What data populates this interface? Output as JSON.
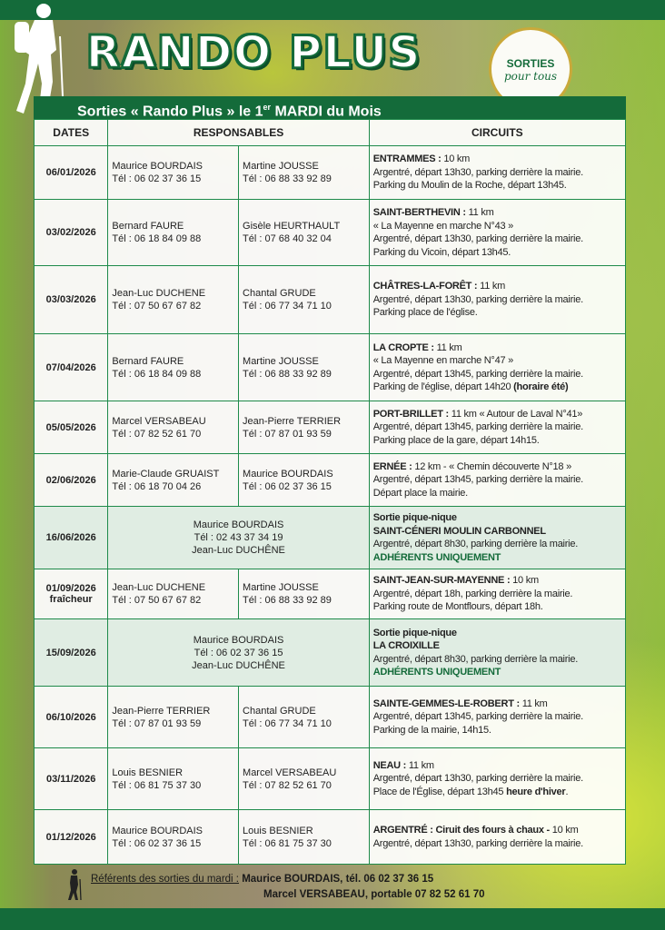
{
  "header": {
    "title": "RANDO PLUS",
    "badge_line1": "SORTIES",
    "badge_line2": "pour tous",
    "subtitle_pre": "Sorties « Rando Plus »  le 1",
    "subtitle_sup": "er",
    "subtitle_post": " MARDI du Mois"
  },
  "colors": {
    "brand_green": "#146b3a",
    "border_green": "#1e8a4a",
    "badge_gold": "#c9a93a"
  },
  "icons": {
    "hiker": "hiker-silhouette-icon"
  },
  "table": {
    "columns": [
      "DATES",
      "RESPONSABLES",
      "CIRCUITS"
    ],
    "rows": [
      {
        "date": [
          "06/01/2026"
        ],
        "resp": [
          [
            "Maurice BOURDAIS",
            "Tél : 06 02 37 36 15"
          ],
          [
            "Martine JOUSSE",
            "Tél : 06 88 33 92 89"
          ]
        ],
        "circuit": [
          [
            [
              "ENTRAMMES :",
              "b"
            ],
            [
              " 10 km",
              ""
            ]
          ],
          [
            [
              "Argentré, départ 13h30, parking derrière la mairie.",
              ""
            ]
          ],
          [
            [
              "Parking du Moulin de la Roche, départ 13h45.",
              ""
            ]
          ]
        ]
      },
      {
        "date": [
          "03/02/2026"
        ],
        "resp": [
          [
            "Bernard FAURE",
            "Tél : 06 18 84 09 88"
          ],
          [
            "Gisèle HEURTHAULT",
            "Tél : 07 68 40 32 04"
          ]
        ],
        "circuit": [
          [
            [
              "SAINT-BERTHEVIN :",
              "b"
            ],
            [
              " 11 km",
              ""
            ]
          ],
          [
            [
              "« La Mayenne en marche N°43 »",
              ""
            ]
          ],
          [
            [
              "Argentré, départ 13h30, parking derrière la mairie.",
              ""
            ]
          ],
          [
            [
              "Parking du Vicoin, départ 13h45.",
              ""
            ]
          ]
        ]
      },
      {
        "date": [
          "03/03/2026"
        ],
        "resp": [
          [
            "Jean-Luc DUCHENE",
            "Tél : 07 50 67 67 82"
          ],
          [
            "Chantal GRUDE",
            "Tél : 06 77 34 71 10"
          ]
        ],
        "circuit": [
          [
            [
              "CHÂTRES-LA-FORÊT :",
              "b"
            ],
            [
              " 11 km",
              ""
            ]
          ],
          [
            [
              "Argentré, départ 13h30, parking derrière la mairie.",
              ""
            ]
          ],
          [
            [
              "Parking place de l'église.",
              ""
            ]
          ]
        ]
      },
      {
        "date": [
          "07/04/2026"
        ],
        "resp": [
          [
            "Bernard FAURE",
            "Tél : 06 18 84 09 88"
          ],
          [
            "Martine JOUSSE",
            "Tél : 06 88 33 92 89"
          ]
        ],
        "circuit": [
          [
            [
              "LA CROPTE :",
              "b"
            ],
            [
              " 11 km",
              ""
            ]
          ],
          [
            [
              "« La Mayenne en marche N°47 »",
              ""
            ]
          ],
          [
            [
              "Argentré, départ 13h45, parking derrière la mairie.",
              ""
            ]
          ],
          [
            [
              "Parking de l'église, départ 14h20 ",
              ""
            ],
            [
              "(horaire été)",
              "b"
            ]
          ]
        ]
      },
      {
        "date": [
          "05/05/2026"
        ],
        "resp": [
          [
            "Marcel VERSABEAU",
            "Tél : 07 82 52 61 70"
          ],
          [
            "Jean-Pierre TERRIER",
            "Tél : 07 87 01 93 59"
          ]
        ],
        "circuit": [
          [
            [
              "PORT-BRILLET :",
              "b"
            ],
            [
              " 11 km « Autour de Laval N°41»",
              ""
            ]
          ],
          [
            [
              "Argentré, départ 13h45, parking derrière la mairie.",
              ""
            ]
          ],
          [
            [
              "Parking place de la gare, départ 14h15.",
              ""
            ]
          ]
        ]
      },
      {
        "date": [
          "02/06/2026"
        ],
        "resp": [
          [
            "Marie-Claude GRUAIST",
            "Tél : 06 18 70 04 26"
          ],
          [
            "Maurice BOURDAIS",
            "Tél : 06 02 37 36 15"
          ]
        ],
        "circuit": [
          [
            [
              "ERNÉE :",
              "b"
            ],
            [
              " 12 km - « Chemin découverte N°18 »",
              ""
            ]
          ],
          [
            [
              "Argentré, départ 13h45, parking derrière la mairie.",
              ""
            ]
          ],
          [
            [
              "Départ place la mairie.",
              ""
            ]
          ]
        ]
      },
      {
        "date": [
          "16/06/2026"
        ],
        "picnic": true,
        "resp_combined": [
          "Maurice BOURDAIS",
          "Tél : 02 43 37 34 19",
          "Jean-Luc DUCHÊNE"
        ],
        "circuit": [
          [
            [
              "Sortie pique-nique",
              "b"
            ]
          ],
          [
            [
              "SAINT-CÉNERI MOULIN CARBONNEL",
              "b"
            ]
          ],
          [
            [
              "Argentré, départ 8h30, parking derrière la mairie.",
              ""
            ]
          ],
          [
            [
              "ADHÉRENTS UNIQUEMENT",
              "g"
            ]
          ]
        ]
      },
      {
        "date": [
          "01/09/2026",
          "fraîcheur"
        ],
        "resp": [
          [
            "Jean-Luc DUCHENE",
            "Tél : 07 50 67 67 82"
          ],
          [
            "Martine JOUSSE",
            "Tél : 06 88 33 92 89"
          ]
        ],
        "circuit": [
          [
            [
              "SAINT-JEAN-SUR-MAYENNE :",
              "b"
            ],
            [
              " 10 km",
              ""
            ]
          ],
          [
            [
              "Argentré, départ 18h, parking derrière la mairie.",
              ""
            ]
          ],
          [
            [
              "Parking route de Montflours, départ 18h.",
              ""
            ]
          ]
        ]
      },
      {
        "date": [
          "15/09/2026"
        ],
        "picnic": true,
        "resp_combined": [
          "Maurice BOURDAIS",
          "Tél : 06 02 37 36 15",
          "Jean-Luc DUCHÊNE"
        ],
        "circuit": [
          [
            [
              "Sortie pique-nique",
              "b"
            ]
          ],
          [
            [
              "LA CROIXILLE",
              "b"
            ]
          ],
          [
            [
              "Argentré, départ 8h30, parking derrière la mairie.",
              ""
            ]
          ],
          [
            [
              "ADHÉRENTS UNIQUEMENT",
              "g"
            ]
          ]
        ]
      },
      {
        "date": [
          "06/10/2026"
        ],
        "resp": [
          [
            "Jean-Pierre TERRIER",
            "Tél : 07 87 01 93 59"
          ],
          [
            "Chantal GRUDE",
            "Tél : 06 77 34 71 10"
          ]
        ],
        "circuit": [
          [
            [
              "SAINTE-GEMMES-LE-ROBERT :",
              "b"
            ],
            [
              " 11 km",
              ""
            ]
          ],
          [
            [
              "Argentré, départ 13h45, parking derrière la mairie.",
              ""
            ]
          ],
          [
            [
              "Parking de la mairie, 14h15.",
              ""
            ]
          ]
        ]
      },
      {
        "date": [
          "03/11/2026"
        ],
        "resp": [
          [
            "Louis BESNIER",
            "Tél : 06 81 75 37 30"
          ],
          [
            "Marcel VERSABEAU",
            "Tél : 07 82 52 61 70"
          ]
        ],
        "circuit": [
          [
            [
              "NEAU :",
              "b"
            ],
            [
              " 11 km",
              ""
            ]
          ],
          [
            [
              "Argentré, départ 13h30, parking derrière la mairie.",
              ""
            ]
          ],
          [
            [
              "Place de l'Église, départ 13h45 ",
              ""
            ],
            [
              "heure d'hiver",
              "b"
            ],
            [
              ".",
              ""
            ]
          ]
        ]
      },
      {
        "date": [
          "01/12/2026"
        ],
        "resp": [
          [
            "Maurice BOURDAIS",
            "Tél : 06 02 37 36 15"
          ],
          [
            "Louis BESNIER",
            "Tél : 06 81 75 37 30"
          ]
        ],
        "circuit": [
          [
            [
              "ARGENTRÉ : Ciruit des fours à chaux -",
              "b"
            ],
            [
              " 10 km",
              ""
            ]
          ],
          [
            [
              "Argentré, départ 13h30, parking derrière la mairie.",
              ""
            ]
          ]
        ]
      }
    ]
  },
  "footer": {
    "label": "Référents des sorties du mardi :",
    "line1": " Maurice BOURDAIS, tél. 06 02 37 36 15",
    "line2": "Marcel VERSABEAU, portable 07 82 52 61 70"
  }
}
